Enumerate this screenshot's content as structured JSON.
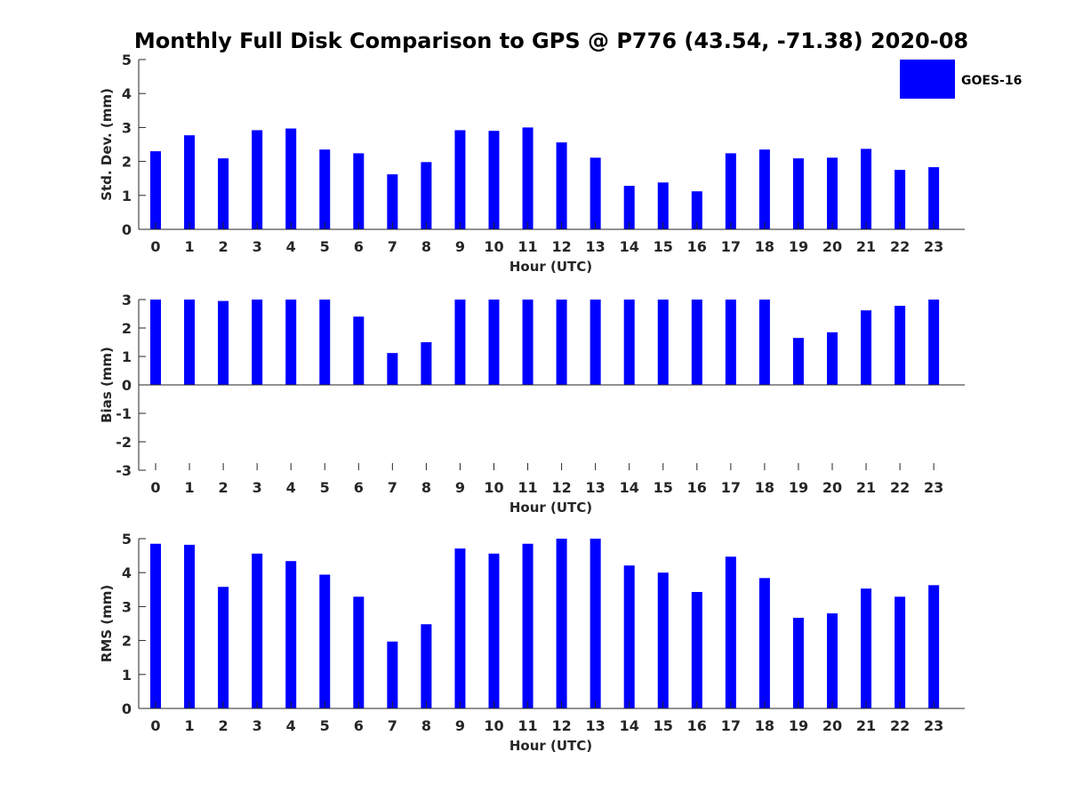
{
  "title": "Monthly Full Disk Comparison to GPS @ P776 (43.54, -71.38) 2020-08",
  "legend": {
    "label": "GOES-16",
    "color": "#0000ff"
  },
  "chart_data": [
    {
      "type": "bar",
      "xlabel": "Hour (UTC)",
      "ylabel": "Std. Dev. (mm)",
      "ylim": [
        0,
        5
      ],
      "yticks": [
        0,
        1,
        2,
        3,
        4,
        5
      ],
      "categories": [
        "0",
        "1",
        "2",
        "3",
        "4",
        "5",
        "6",
        "7",
        "8",
        "9",
        "10",
        "11",
        "12",
        "13",
        "14",
        "15",
        "16",
        "17",
        "18",
        "19",
        "20",
        "21",
        "22",
        "23"
      ],
      "series": [
        {
          "name": "GOES-16",
          "values": [
            2.3,
            2.77,
            2.09,
            2.92,
            2.97,
            2.35,
            2.24,
            1.62,
            1.98,
            2.92,
            2.9,
            3.0,
            2.56,
            2.11,
            1.28,
            1.38,
            1.12,
            2.24,
            2.35,
            2.09,
            2.11,
            2.37,
            1.75,
            1.83
          ]
        }
      ]
    },
    {
      "type": "bar",
      "xlabel": "Hour (UTC)",
      "ylabel": "Bias (mm)",
      "ylim": [
        -3,
        3
      ],
      "yticks": [
        -3,
        -2,
        -1,
        0,
        1,
        2,
        3
      ],
      "categories": [
        "0",
        "1",
        "2",
        "3",
        "4",
        "5",
        "6",
        "7",
        "8",
        "9",
        "10",
        "11",
        "12",
        "13",
        "14",
        "15",
        "16",
        "17",
        "18",
        "19",
        "20",
        "21",
        "22",
        "23"
      ],
      "series": [
        {
          "name": "GOES-16",
          "values": [
            3.0,
            3.0,
            2.95,
            3.0,
            3.0,
            3.0,
            2.4,
            1.12,
            1.5,
            3.0,
            3.0,
            3.0,
            3.0,
            3.0,
            3.0,
            3.0,
            3.0,
            3.0,
            3.0,
            1.65,
            1.85,
            2.62,
            2.78,
            3.0
          ]
        }
      ]
    },
    {
      "type": "bar",
      "xlabel": "Hour (UTC)",
      "ylabel": "RMS (mm)",
      "ylim": [
        0,
        5
      ],
      "yticks": [
        0,
        1,
        2,
        3,
        4,
        5
      ],
      "categories": [
        "0",
        "1",
        "2",
        "3",
        "4",
        "5",
        "6",
        "7",
        "8",
        "9",
        "10",
        "11",
        "12",
        "13",
        "14",
        "15",
        "16",
        "17",
        "18",
        "19",
        "20",
        "21",
        "22",
        "23"
      ],
      "series": [
        {
          "name": "GOES-16",
          "values": [
            4.85,
            4.82,
            3.58,
            4.56,
            4.34,
            3.94,
            3.29,
            1.97,
            2.48,
            4.71,
            4.56,
            4.85,
            5.0,
            5.0,
            4.21,
            4.0,
            3.43,
            4.47,
            3.84,
            2.67,
            2.8,
            3.53,
            3.29,
            3.63
          ]
        }
      ]
    }
  ]
}
